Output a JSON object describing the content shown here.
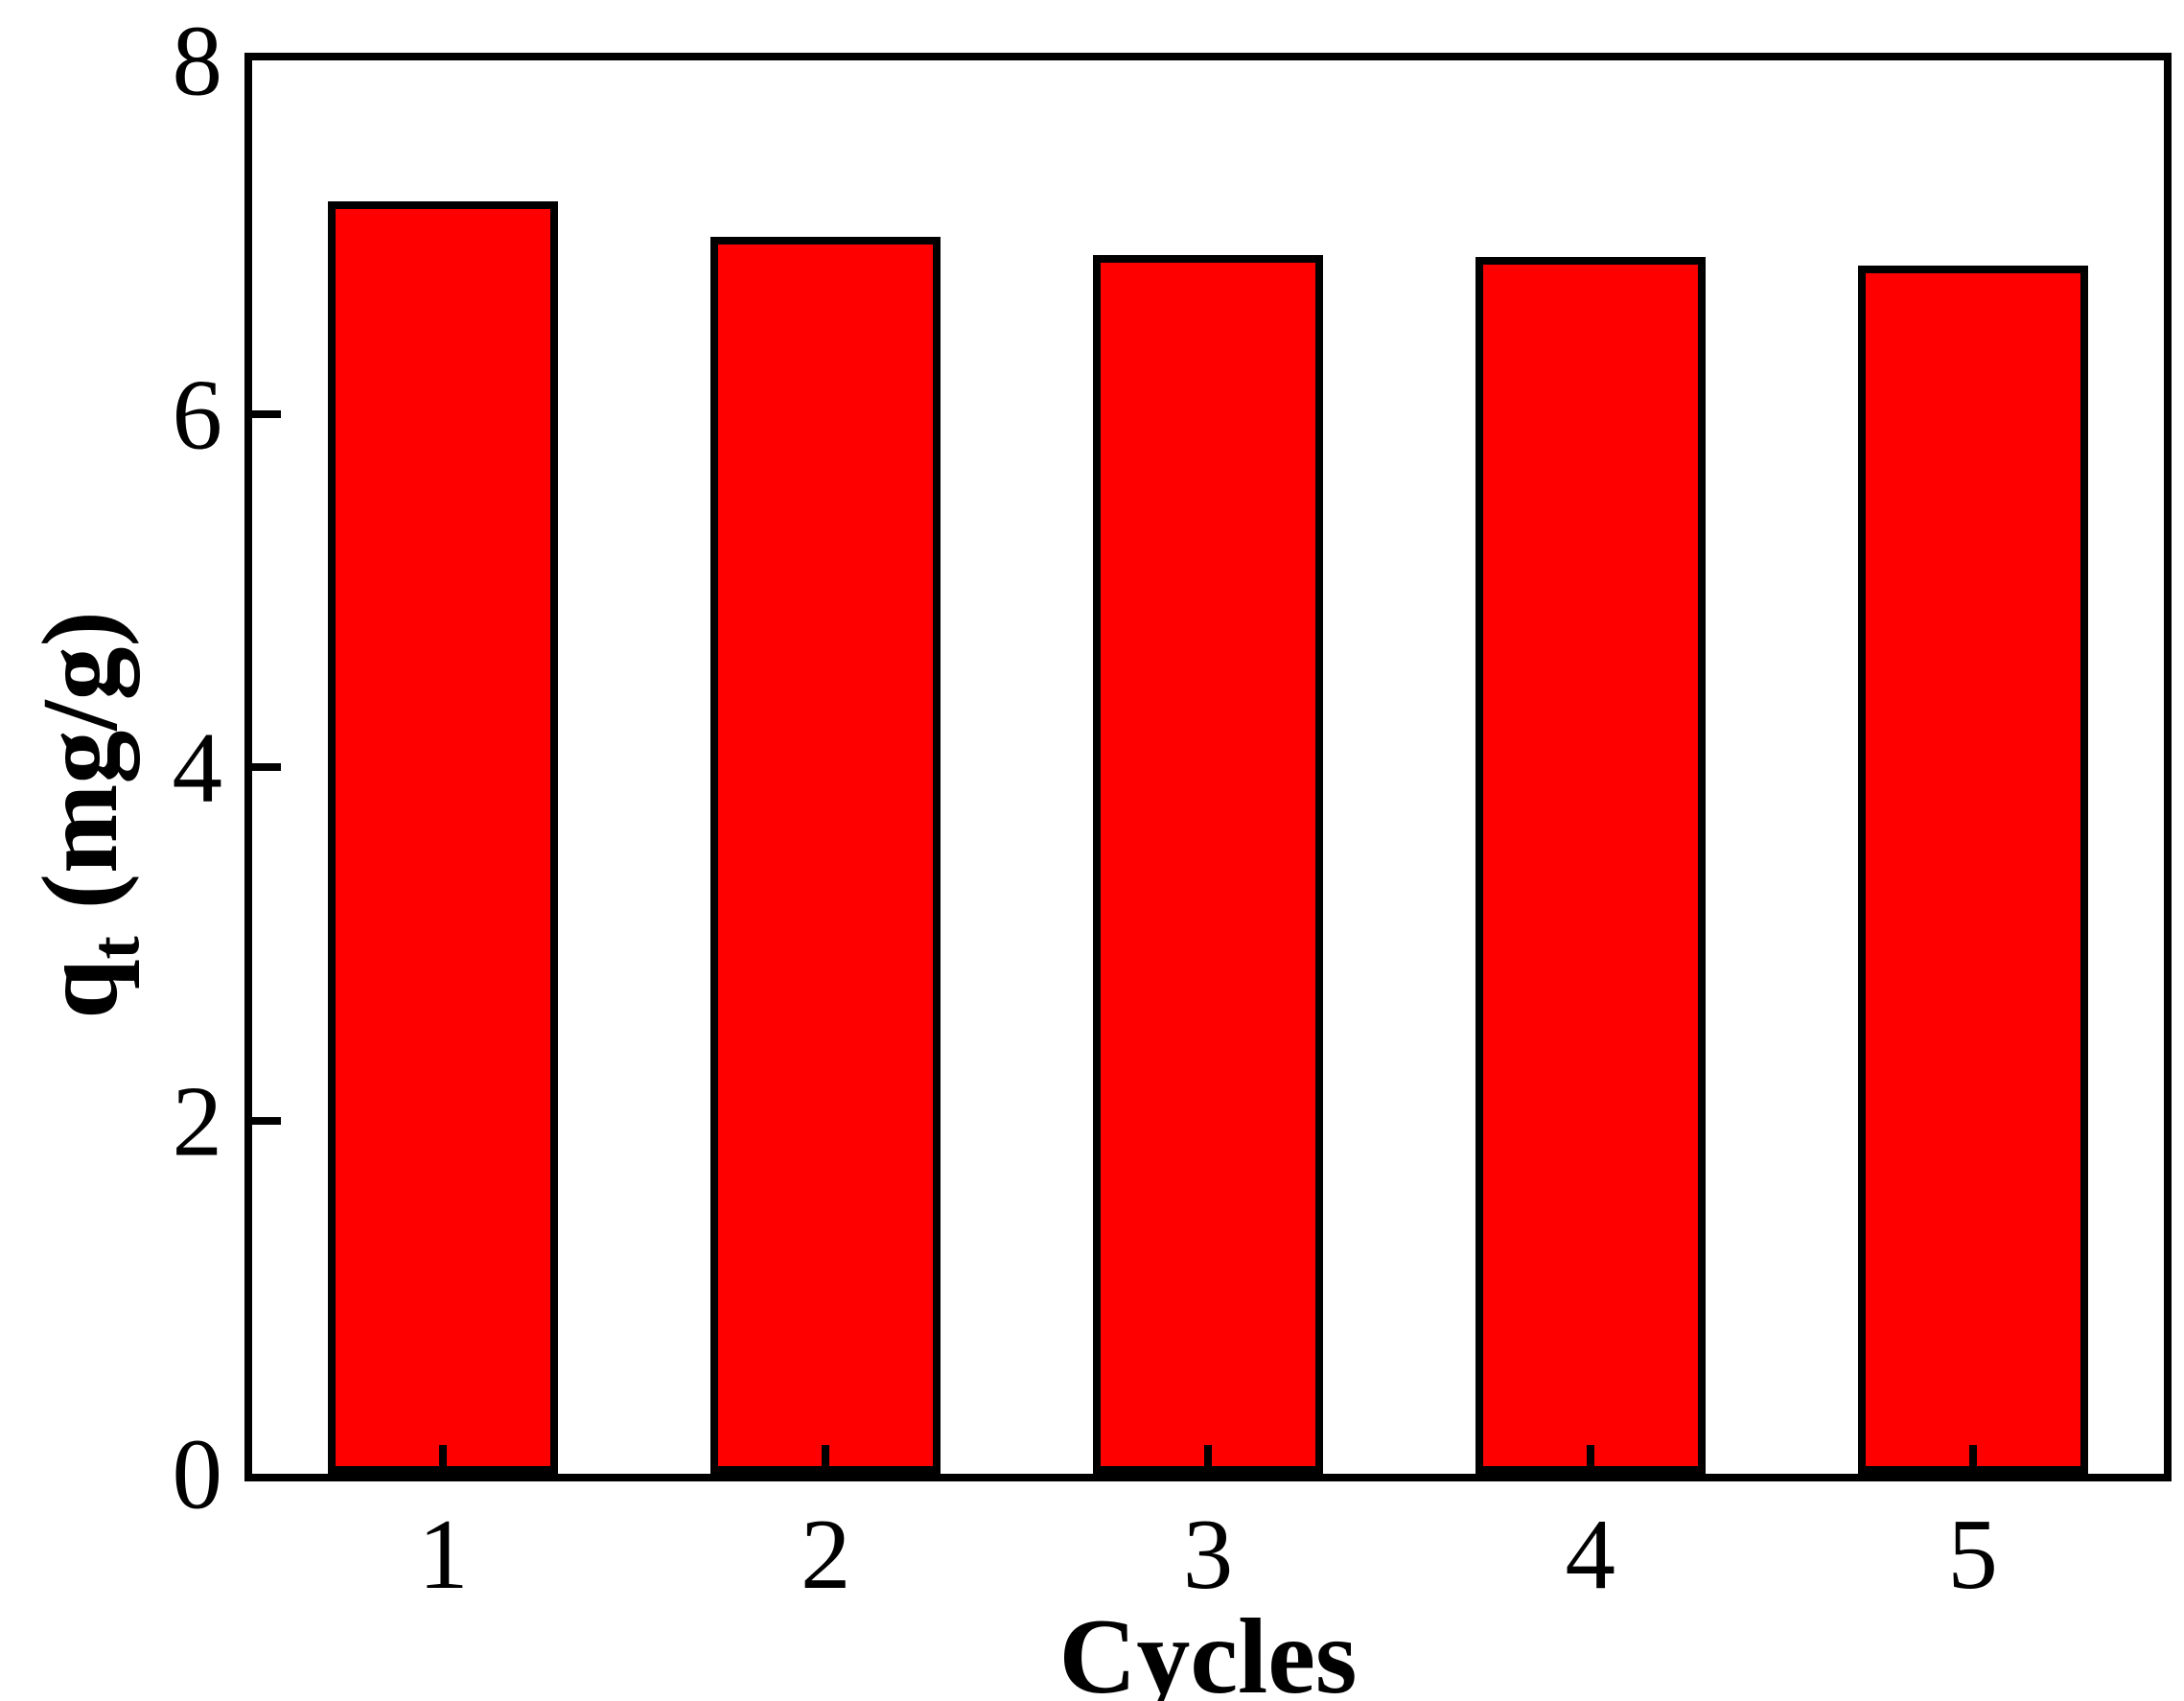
{
  "chart_data": {
    "type": "bar",
    "title": "",
    "categories": [
      "1",
      "2",
      "3",
      "4",
      "5"
    ],
    "values": [
      7.2,
      7.0,
      6.9,
      6.89,
      6.84
    ],
    "xlabel": "Cycles",
    "ylabel_text": "qt (mg/g)",
    "ylabel_base": "q",
    "ylabel_sub": "t",
    "ylabel_rest": " (mg/g)",
    "yticks": [
      0,
      2,
      4,
      6,
      8
    ],
    "ylim": [
      0,
      8
    ],
    "grid": false,
    "legend_position": "none",
    "bar_fill_color": "#FF0000",
    "bar_edge_color": "#000000",
    "axis_frame_color": "#000000",
    "text_color": "#000000",
    "background_color": "#FFFFFF"
  }
}
